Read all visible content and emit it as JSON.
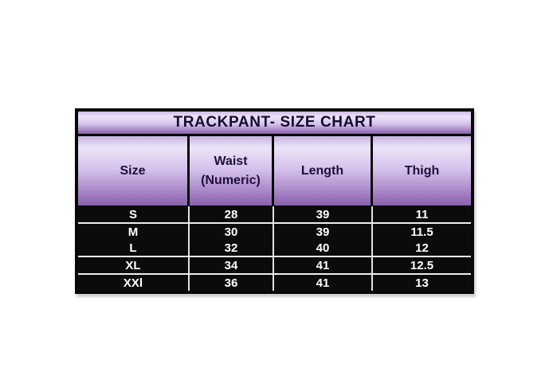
{
  "page": {
    "background_color": "#ffffff"
  },
  "size_chart": {
    "header": [
      {
        "line1": "Size",
        "line2": ""
      },
      {
        "line1": "Waist",
        "line2": "(Numeric)"
      },
      {
        "line1": "Length",
        "line2": ""
      },
      {
        "line1": "Thigh",
        "line2": ""
      }
    ],
    "colors": {
      "outer_border": "#070707",
      "purple_gradient_light": "#ece4f7",
      "purple_gradient_dark": "#8a60ad",
      "title_text": "#150b30",
      "header_text": "#1d0f3a",
      "row_background": "#0b0b0b",
      "row_text": "#ffffff",
      "row_separator": "#ededed"
    }
  },
  "chart_data": {
    "type": "table",
    "title": "TRACKPANT- SIZE CHART",
    "columns": [
      "Size",
      "Waist (Numeric)",
      "Length",
      "Thigh"
    ],
    "rows": [
      [
        "S",
        "28",
        "39",
        "11"
      ],
      [
        "M",
        "30",
        "39",
        "11.5"
      ],
      [
        "L",
        "32",
        "40",
        "12"
      ],
      [
        "XL",
        "34",
        "41",
        "12.5"
      ],
      [
        "XXl",
        "36",
        "41",
        "13"
      ]
    ]
  }
}
